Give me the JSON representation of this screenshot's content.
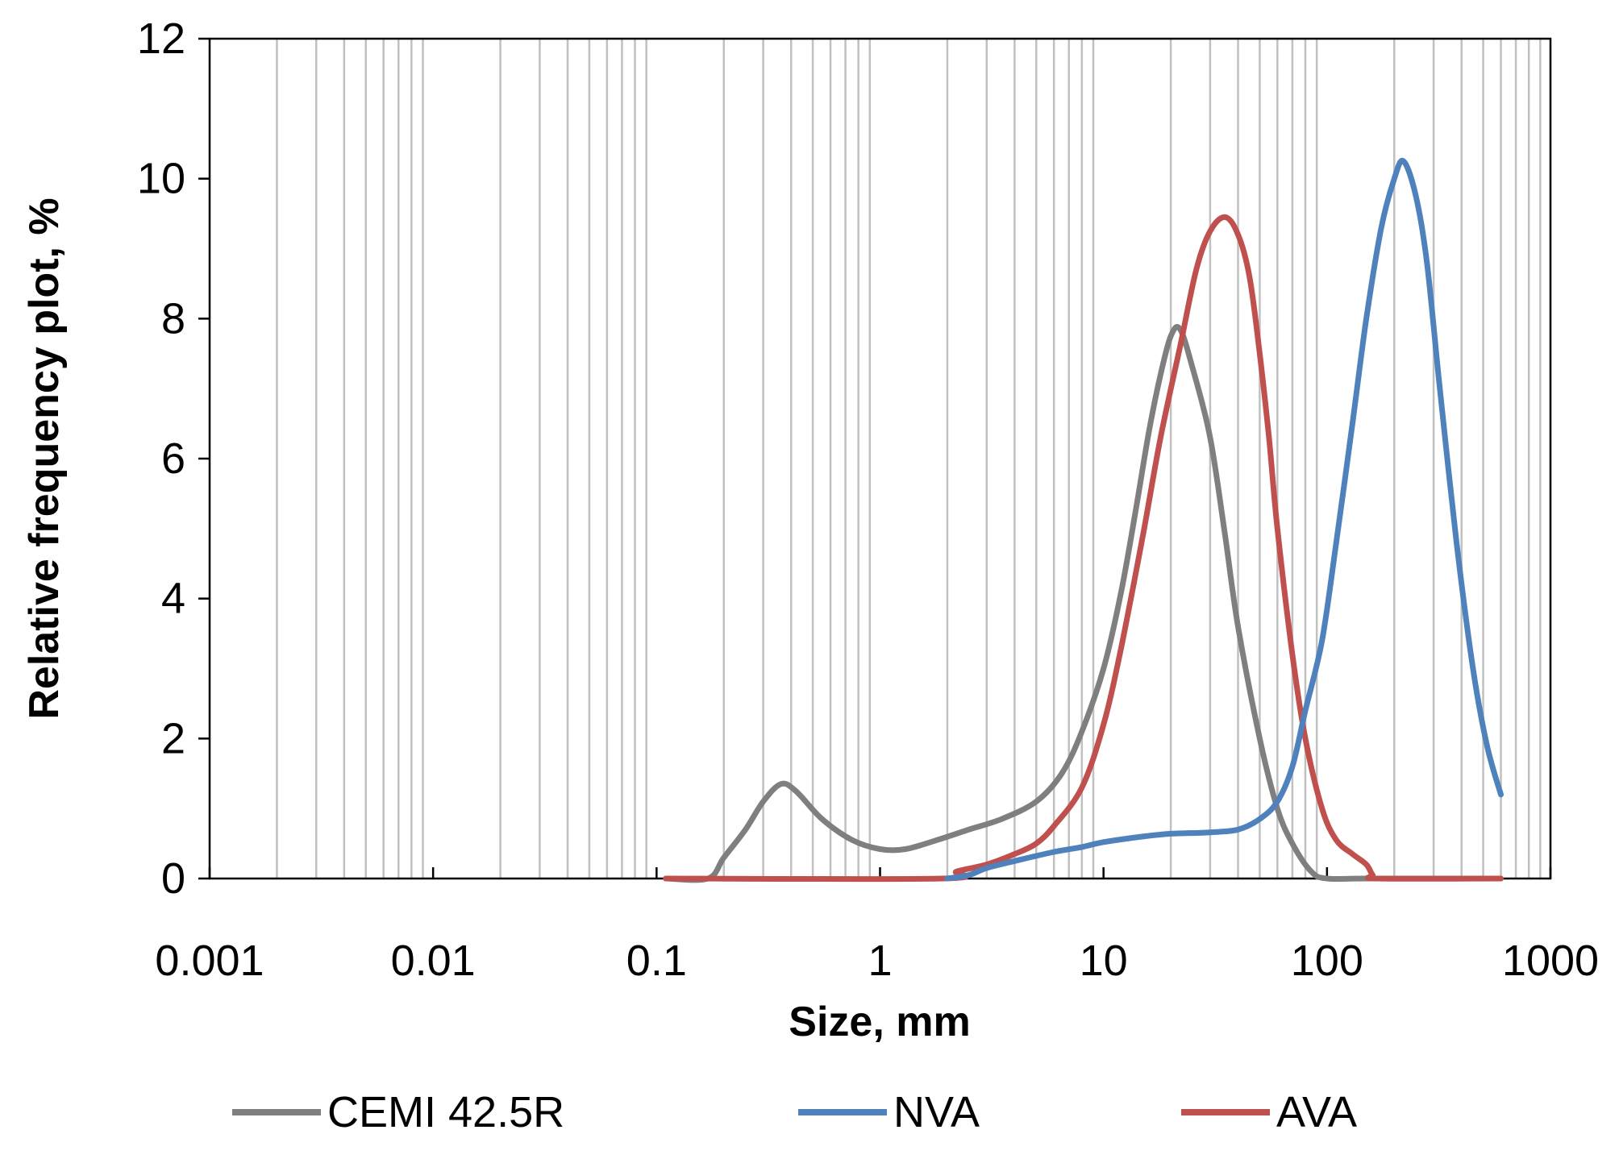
{
  "chart_data": {
    "type": "line",
    "title": "",
    "xlabel": "Size, mm",
    "ylabel": "Relative frequency plot, %",
    "xscale": "log",
    "xlim": [
      0.001,
      1000
    ],
    "ylim": [
      0,
      12
    ],
    "grid": "vertical minor and major log gridlines",
    "x_tick_labels": [
      "0.001",
      "0.01",
      "0.1",
      "1",
      "10",
      "100",
      "1000"
    ],
    "x_tick_values": [
      0.001,
      0.01,
      0.1,
      1,
      10,
      100,
      1000
    ],
    "y_tick_labels": [
      "0",
      "2",
      "4",
      "6",
      "8",
      "10",
      "12"
    ],
    "y_tick_values": [
      0,
      2,
      4,
      6,
      8,
      10,
      12
    ],
    "legend_position": "bottom",
    "series": [
      {
        "name": "CEMI 42.5R",
        "color": "#7f7f7f",
        "points": [
          [
            0.11,
            0
          ],
          [
            0.17,
            0
          ],
          [
            0.2,
            0.3
          ],
          [
            0.25,
            0.7
          ],
          [
            0.3,
            1.1
          ],
          [
            0.36,
            1.35
          ],
          [
            0.42,
            1.25
          ],
          [
            0.55,
            0.85
          ],
          [
            0.75,
            0.55
          ],
          [
            1.0,
            0.42
          ],
          [
            1.3,
            0.42
          ],
          [
            1.8,
            0.55
          ],
          [
            2.5,
            0.7
          ],
          [
            3.5,
            0.85
          ],
          [
            5,
            1.1
          ],
          [
            6.5,
            1.5
          ],
          [
            8,
            2.1
          ],
          [
            10,
            3.0
          ],
          [
            12,
            4.1
          ],
          [
            14,
            5.3
          ],
          [
            16,
            6.4
          ],
          [
            18,
            7.2
          ],
          [
            20,
            7.75
          ],
          [
            22,
            7.85
          ],
          [
            25,
            7.3
          ],
          [
            30,
            6.3
          ],
          [
            35,
            4.9
          ],
          [
            40,
            3.6
          ],
          [
            50,
            2.0
          ],
          [
            60,
            1.0
          ],
          [
            70,
            0.5
          ],
          [
            85,
            0.1
          ],
          [
            100,
            0
          ],
          [
            150,
            0
          ],
          [
            600,
            0
          ]
        ]
      },
      {
        "name": "NVA",
        "color": "#4f81bd",
        "points": [
          [
            2.0,
            0
          ],
          [
            2.5,
            0.05
          ],
          [
            3,
            0.15
          ],
          [
            4,
            0.25
          ],
          [
            6,
            0.38
          ],
          [
            8,
            0.45
          ],
          [
            10,
            0.52
          ],
          [
            15,
            0.6
          ],
          [
            20,
            0.64
          ],
          [
            30,
            0.66
          ],
          [
            40,
            0.7
          ],
          [
            50,
            0.85
          ],
          [
            60,
            1.1
          ],
          [
            70,
            1.6
          ],
          [
            80,
            2.4
          ],
          [
            95,
            3.4
          ],
          [
            110,
            4.8
          ],
          [
            130,
            6.5
          ],
          [
            150,
            8.0
          ],
          [
            175,
            9.3
          ],
          [
            200,
            10.0
          ],
          [
            220,
            10.25
          ],
          [
            250,
            9.75
          ],
          [
            280,
            8.8
          ],
          [
            320,
            7.0
          ],
          [
            380,
            4.8
          ],
          [
            450,
            3.0
          ],
          [
            520,
            1.9
          ],
          [
            600,
            1.2
          ]
        ]
      },
      {
        "name": "AVA",
        "color": "#c0504d",
        "points": [
          [
            0.11,
            0
          ],
          [
            1.9,
            0
          ],
          [
            2.2,
            0.1
          ],
          [
            3,
            0.2
          ],
          [
            4,
            0.35
          ],
          [
            5,
            0.5
          ],
          [
            6,
            0.75
          ],
          [
            8,
            1.3
          ],
          [
            10,
            2.2
          ],
          [
            12,
            3.3
          ],
          [
            15,
            4.9
          ],
          [
            18,
            6.3
          ],
          [
            22,
            7.6
          ],
          [
            26,
            8.7
          ],
          [
            30,
            9.25
          ],
          [
            35,
            9.45
          ],
          [
            40,
            9.2
          ],
          [
            45,
            8.6
          ],
          [
            50,
            7.5
          ],
          [
            55,
            6.3
          ],
          [
            60,
            5.0
          ],
          [
            70,
            3.2
          ],
          [
            80,
            2.0
          ],
          [
            95,
            1.0
          ],
          [
            110,
            0.55
          ],
          [
            130,
            0.35
          ],
          [
            150,
            0.2
          ],
          [
            160,
            0.05
          ],
          [
            170,
            0
          ],
          [
            600,
            0
          ]
        ]
      }
    ]
  }
}
